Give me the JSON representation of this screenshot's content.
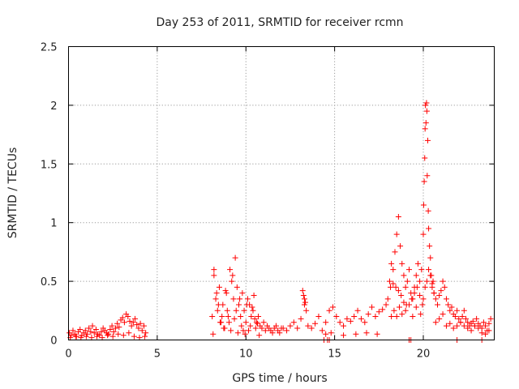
{
  "chart_data": {
    "type": "scatter",
    "title": "Day 253 of 2011, SRMTID for receiver rcmn",
    "xlabel": "GPS time / hours",
    "ylabel": "SRMTID / TECUs",
    "xlim": [
      0,
      24
    ],
    "ylim": [
      0,
      2.5
    ],
    "xticks": [
      0,
      5,
      10,
      15,
      20
    ],
    "yticks": [
      0,
      0.5,
      1,
      1.5,
      2,
      2.5
    ],
    "xtick_labels": [
      "0",
      "5",
      "10",
      "15",
      "20"
    ],
    "ytick_labels": [
      "0",
      "0.5",
      "1",
      "1.5",
      "2",
      "2.5"
    ],
    "grid": true,
    "marker": "plus",
    "color": "#ff0000",
    "series": [
      {
        "x": [
          0.05,
          0.15,
          0.25,
          0.35,
          0.45,
          0.55,
          0.65,
          0.75,
          0.85,
          0.95,
          1.05,
          1.15,
          1.25,
          1.35,
          1.45,
          1.55,
          1.65,
          1.75,
          1.85,
          1.95,
          2.05,
          2.15,
          2.25,
          2.35,
          2.45,
          2.55,
          2.65,
          2.75,
          2.85,
          2.95,
          3.05,
          3.15,
          3.25,
          3.35,
          3.45,
          3.55,
          3.65,
          3.75,
          3.85,
          3.95,
          4.05,
          4.15,
          4.25,
          4.35,
          0.1,
          0.4,
          0.7,
          1.0,
          1.3,
          1.6,
          1.9,
          2.2,
          2.5,
          2.8,
          3.1,
          3.4,
          3.7,
          4.0,
          4.3,
          8.1,
          8.2,
          8.3,
          8.4,
          8.5,
          8.6,
          8.7,
          8.8,
          8.9,
          9.0,
          9.1,
          9.2,
          9.3,
          9.4,
          9.5,
          9.6,
          9.7,
          9.8,
          9.9,
          10.0,
          10.1,
          10.2,
          10.3,
          10.4,
          10.5,
          10.6,
          10.7,
          10.8,
          10.9,
          11.0,
          11.1,
          11.2,
          11.3,
          11.4,
          11.5,
          11.6,
          11.7,
          11.8,
          11.9,
          12.0,
          8.15,
          8.35,
          8.55,
          8.75,
          8.95,
          9.15,
          9.35,
          9.55,
          9.75,
          9.95,
          10.15,
          10.35,
          10.55,
          10.75,
          8.2,
          8.45,
          8.65,
          8.85,
          9.05,
          9.25,
          9.45,
          9.65,
          9.85,
          10.05,
          10.25,
          10.45,
          10.65,
          12.1,
          12.3,
          12.5,
          12.7,
          12.9,
          13.1,
          13.3,
          13.5,
          13.7,
          13.9,
          14.1,
          14.3,
          14.5,
          14.7,
          14.9,
          15.1,
          15.3,
          15.5,
          15.7,
          15.9,
          16.1,
          16.3,
          16.5,
          16.7,
          16.9,
          17.1,
          17.3,
          17.5,
          17.7,
          17.9,
          13.2,
          13.25,
          13.3,
          13.35,
          13.4,
          14.5,
          14.8,
          15.5,
          16.2,
          16.8,
          17.4,
          18.0,
          18.1,
          18.2,
          18.3,
          18.4,
          18.5,
          18.6,
          18.7,
          18.8,
          18.9,
          19.0,
          19.1,
          19.2,
          19.3,
          19.4,
          19.5,
          19.6,
          19.7,
          19.8,
          19.9,
          18.15,
          18.3,
          18.45,
          18.6,
          18.75,
          18.9,
          19.05,
          19.2,
          19.35,
          19.5,
          19.65,
          19.8,
          19.95,
          18.2,
          18.35,
          18.5,
          18.65,
          18.8,
          19.0,
          19.4,
          19.6,
          19.85,
          20.0,
          20.02,
          20.05,
          20.08,
          20.1,
          20.12,
          20.15,
          20.18,
          20.2,
          20.22,
          20.25,
          20.28,
          20.3,
          20.35,
          20.4,
          20.45,
          20.5,
          20.55,
          20.6,
          20.0,
          20.1,
          20.2,
          20.3,
          20.4,
          20.5,
          20.6,
          20.7,
          20.8,
          20.9,
          21.0,
          21.1,
          21.2,
          21.3,
          21.4,
          21.5,
          21.6,
          21.7,
          21.8,
          21.9,
          22.0,
          22.1,
          22.2,
          22.3,
          22.4,
          22.5,
          22.6,
          22.7,
          22.8,
          22.9,
          23.0,
          23.1,
          23.2,
          23.3,
          23.4,
          23.5,
          23.6,
          23.7,
          23.8,
          20.7,
          20.9,
          21.1,
          21.3,
          21.5,
          21.7,
          21.9,
          22.1,
          22.3,
          22.5,
          22.7,
          22.9,
          23.1,
          23.3,
          23.5,
          23.7,
          14.4,
          14.6,
          14.7,
          19.2,
          19.3,
          21.9,
          23.3
        ],
        "y": [
          0.06,
          0.04,
          0.08,
          0.05,
          0.03,
          0.07,
          0.09,
          0.04,
          0.06,
          0.08,
          0.05,
          0.1,
          0.07,
          0.12,
          0.06,
          0.09,
          0.05,
          0.04,
          0.07,
          0.1,
          0.08,
          0.06,
          0.05,
          0.09,
          0.12,
          0.07,
          0.1,
          0.14,
          0.11,
          0.17,
          0.19,
          0.15,
          0.22,
          0.2,
          0.16,
          0.12,
          0.15,
          0.18,
          0.13,
          0.1,
          0.14,
          0.08,
          0.12,
          0.06,
          0.02,
          0.03,
          0.02,
          0.03,
          0.02,
          0.03,
          0.02,
          0.04,
          0.03,
          0.05,
          0.04,
          0.06,
          0.03,
          0.02,
          0.03,
          0.2,
          0.55,
          0.35,
          0.25,
          0.45,
          0.15,
          0.3,
          0.1,
          0.4,
          0.2,
          0.6,
          0.5,
          0.35,
          0.7,
          0.45,
          0.3,
          0.2,
          0.4,
          0.25,
          0.15,
          0.35,
          0.3,
          0.2,
          0.25,
          0.18,
          0.15,
          0.2,
          0.12,
          0.1,
          0.15,
          0.08,
          0.12,
          0.1,
          0.08,
          0.06,
          0.1,
          0.12,
          0.08,
          0.06,
          0.1,
          0.05,
          0.4,
          0.15,
          0.1,
          0.25,
          0.08,
          0.18,
          0.06,
          0.12,
          0.05,
          0.08,
          0.28,
          0.1,
          0.04,
          0.6,
          0.3,
          0.2,
          0.42,
          0.15,
          0.55,
          0.25,
          0.35,
          0.08,
          0.3,
          0.12,
          0.38,
          0.14,
          0.1,
          0.08,
          0.12,
          0.15,
          0.1,
          0.18,
          0.3,
          0.12,
          0.1,
          0.14,
          0.2,
          0.08,
          0.15,
          0.25,
          0.28,
          0.2,
          0.15,
          0.12,
          0.18,
          0.16,
          0.2,
          0.25,
          0.18,
          0.15,
          0.22,
          0.28,
          0.2,
          0.24,
          0.26,
          0.3,
          0.42,
          0.38,
          0.35,
          0.32,
          0.25,
          0.05,
          0.06,
          0.04,
          0.05,
          0.06,
          0.05,
          0.35,
          0.5,
          0.65,
          0.6,
          0.75,
          0.9,
          1.05,
          0.8,
          0.65,
          0.55,
          0.45,
          0.5,
          0.6,
          0.4,
          0.35,
          0.45,
          0.55,
          0.65,
          0.5,
          0.6,
          0.45,
          0.48,
          0.45,
          0.42,
          0.38,
          0.32,
          0.3,
          0.3,
          0.35,
          0.4,
          0.45,
          0.38,
          0.3,
          0.2,
          0.25,
          0.2,
          0.28,
          0.22,
          0.25,
          0.2,
          0.28,
          0.22,
          0.9,
          1.15,
          1.35,
          1.55,
          1.8,
          2.0,
          1.85,
          2.02,
          1.95,
          1.4,
          1.7,
          1.1,
          0.95,
          0.8,
          0.7,
          0.55,
          0.45,
          0.5,
          0.4,
          0.35,
          0.45,
          0.5,
          0.6,
          0.55,
          0.48,
          0.4,
          0.35,
          0.3,
          0.38,
          0.42,
          0.5,
          0.45,
          0.35,
          0.3,
          0.25,
          0.28,
          0.22,
          0.2,
          0.25,
          0.18,
          0.15,
          0.2,
          0.25,
          0.18,
          0.15,
          0.12,
          0.14,
          0.16,
          0.12,
          0.18,
          0.14,
          0.12,
          0.1,
          0.15,
          0.12,
          0.08,
          0.14,
          0.18,
          0.15,
          0.18,
          0.22,
          0.12,
          0.14,
          0.1,
          0.12,
          0.15,
          0.12,
          0.1,
          0.08,
          0.12,
          0.1,
          0.06,
          0.05,
          0.08,
          0.0,
          0.0,
          0.0,
          0.0,
          0.0,
          0.0,
          0.0
        ]
      }
    ]
  }
}
